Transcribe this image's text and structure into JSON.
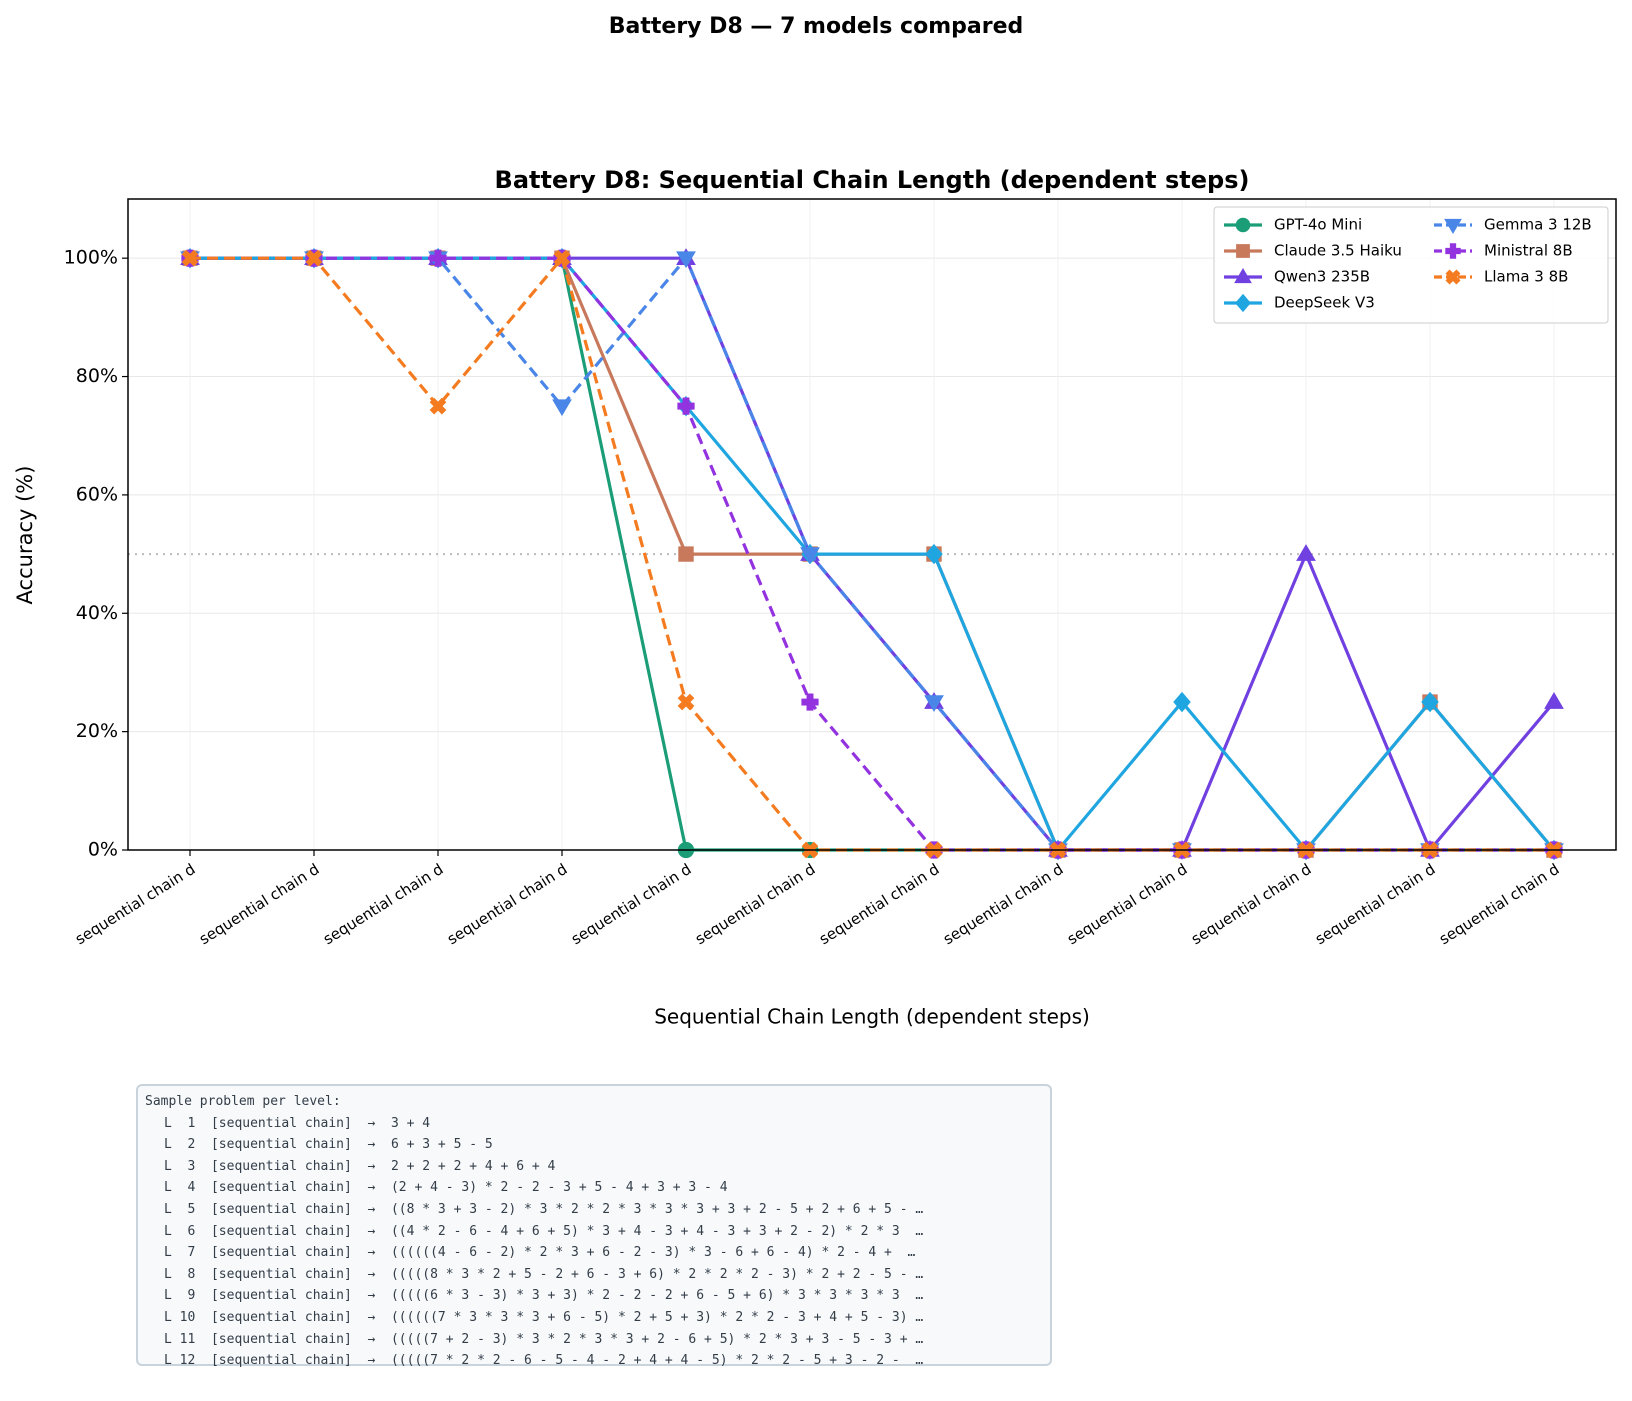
{
  "chart_data": {
    "type": "line",
    "suptitle": "Battery D8  —  7 models compared",
    "title": "Battery D8: Sequential Chain Length (dependent steps)",
    "x_label": "Sequential Chain Length (dependent steps)",
    "y_label": "Accuracy (%)",
    "categories": [
      "sequential chain d",
      "sequential chain d",
      "sequential chain d",
      "sequential chain d",
      "sequential chain d",
      "sequential chain d",
      "sequential chain d",
      "sequential chain d",
      "sequential chain d",
      "sequential chain d",
      "sequential chain d",
      "sequential chain d"
    ],
    "ylim": [
      0,
      110
    ],
    "yticks": [
      {
        "value": 0,
        "label": "0%"
      },
      {
        "value": 20,
        "label": "20%"
      },
      {
        "value": 40,
        "label": "40%"
      },
      {
        "value": 60,
        "label": "60%"
      },
      {
        "value": 80,
        "label": "80%"
      },
      {
        "value": 100,
        "label": "100%"
      }
    ],
    "grid": true,
    "reference_line": 50,
    "legend": "upper right",
    "series": [
      {
        "name": "GPT-4o Mini",
        "color": "#1b9e77",
        "marker": "circle",
        "dashed": false,
        "values": [
          100,
          100,
          100,
          100,
          0,
          0,
          0,
          0,
          0,
          0,
          0,
          0
        ]
      },
      {
        "name": "Claude 3.5 Haiku",
        "color": "#c8795c",
        "marker": "square",
        "dashed": false,
        "values": [
          100,
          100,
          100,
          100,
          50,
          50,
          50,
          0,
          0,
          0,
          25,
          0
        ]
      },
      {
        "name": "Qwen3 235B",
        "color": "#7040e0",
        "marker": "triangle-up",
        "dashed": false,
        "values": [
          100,
          100,
          100,
          100,
          100,
          50,
          25,
          0,
          0,
          50,
          0,
          25
        ]
      },
      {
        "name": "DeepSeek V3",
        "color": "#1fa6e0",
        "marker": "diamond",
        "dashed": false,
        "values": [
          100,
          100,
          100,
          100,
          75,
          50,
          50,
          0,
          25,
          0,
          25,
          0
        ]
      },
      {
        "name": "Gemma 3 12B",
        "color": "#4a86e8",
        "marker": "triangle-down",
        "dashed": true,
        "values": [
          100,
          100,
          100,
          75,
          100,
          50,
          25,
          0,
          0,
          0,
          0,
          0
        ]
      },
      {
        "name": "Ministral 8B",
        "color": "#9333e0",
        "marker": "plus",
        "dashed": true,
        "values": [
          100,
          100,
          100,
          100,
          75,
          25,
          0,
          0,
          0,
          0,
          0,
          0
        ]
      },
      {
        "name": "Llama 3 8B",
        "color": "#f47b20",
        "marker": "x",
        "dashed": true,
        "values": [
          100,
          100,
          75,
          100,
          25,
          0,
          0,
          0,
          0,
          0,
          0,
          0
        ]
      }
    ]
  },
  "sample_box": {
    "heading": "Sample problem per level:",
    "lines": [
      "L  1  [sequential chain]  →  3 + 4",
      "L  2  [sequential chain]  →  6 + 3 + 5 - 5",
      "L  3  [sequential chain]  →  2 + 2 + 2 + 4 + 6 + 4",
      "L  4  [sequential chain]  →  (2 + 4 - 3) * 2 - 2 - 3 + 5 - 4 + 3 + 3 - 4",
      "L  5  [sequential chain]  →  ((8 * 3 + 3 - 2) * 3 * 2 * 2 * 3 * 3 * 3 + 3 + 2 - 5 + 2 + 6 + 5 - …",
      "L  6  [sequential chain]  →  ((4 * 2 - 6 - 4 + 6 + 5) * 3 + 4 - 3 + 4 - 3 + 3 + 2 - 2) * 2 * 3  …",
      "L  7  [sequential chain]  →  ((((((4 - 6 - 2) * 2 * 3 + 6 - 2 - 3) * 3 - 6 + 6 - 4) * 2 - 4 +  …",
      "L  8  [sequential chain]  →  (((((8 * 3 * 2 + 5 - 2 + 6 - 3 + 6) * 2 * 2 * 2 - 3) * 2 + 2 - 5 - …",
      "L  9  [sequential chain]  →  (((((6 * 3 - 3) * 3 + 3) * 2 - 2 - 2 + 6 - 5 + 6) * 3 * 3 * 3 * 3  …",
      "L 10  [sequential chain]  →  ((((((7 * 3 * 3 * 3 + 6 - 5) * 2 + 5 + 3) * 2 * 2 - 3 + 4 + 5 - 3) …",
      "L 11  [sequential chain]  →  (((((7 + 2 - 3) * 3 * 2 * 3 * 3 + 2 - 6 + 5) * 2 * 3 + 3 - 5 - 3 + …",
      "L 12  [sequential chain]  →  (((((7 * 2 * 2 - 6 - 5 - 4 - 2 + 4 + 4 - 5) * 2 * 2 - 5 + 3 - 2 -  …"
    ]
  }
}
